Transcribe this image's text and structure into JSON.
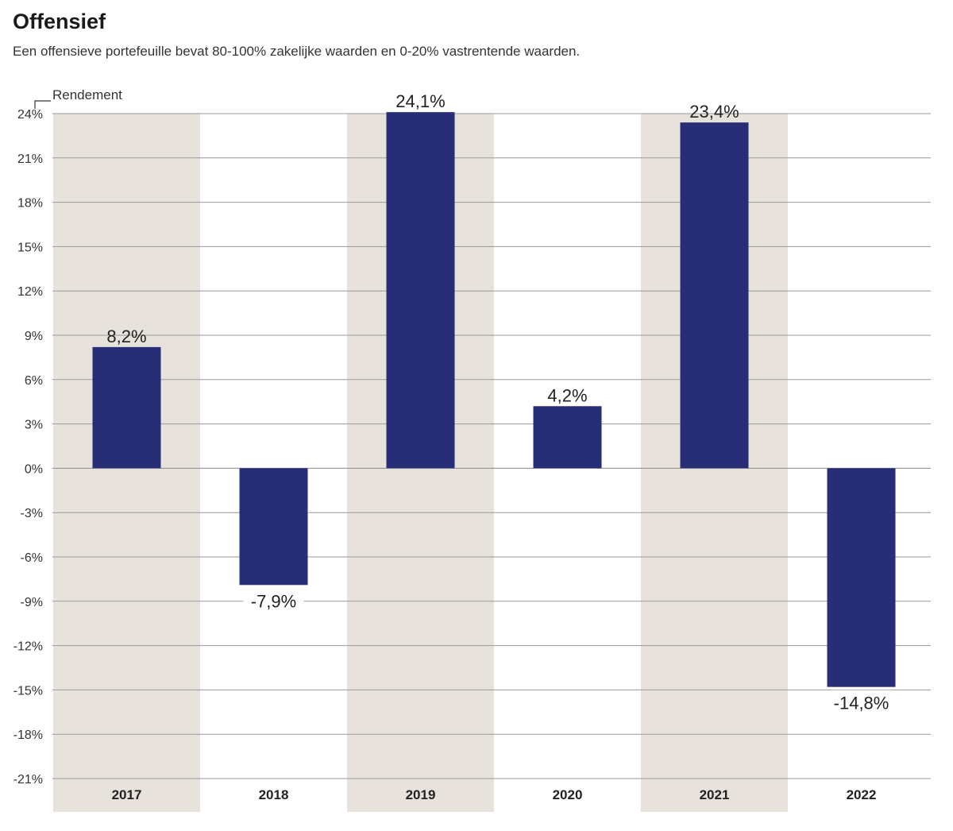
{
  "header": {
    "title": "Offensief",
    "subtitle": "Een offensieve portefeuille bevat 80-100% zakelijke waarden en 0-20% vastrentende waarden."
  },
  "colors": {
    "bar": "#282d78",
    "band": "#e7e2dc",
    "grid": "#9a9a9a",
    "zero": "#8a8a8a"
  },
  "chart_data": {
    "type": "bar",
    "title": "Offensief",
    "xlabel": "",
    "ylabel": "Rendement",
    "categories": [
      "2017",
      "2018",
      "2019",
      "2020",
      "2021",
      "2022"
    ],
    "values": [
      8.2,
      -7.9,
      24.1,
      4.2,
      23.4,
      -14.8
    ],
    "value_labels": [
      "8,2%",
      "-7,9%",
      "24,1%",
      "4,2%",
      "23,4%",
      "-14,8%"
    ],
    "ylim": [
      -21,
      24
    ],
    "yticks": [
      24,
      21,
      18,
      15,
      12,
      9,
      6,
      3,
      0,
      -3,
      -6,
      -9,
      -12,
      -15,
      -18,
      -21
    ],
    "ytick_labels": [
      "24%",
      "21%",
      "18%",
      "15%",
      "12%",
      "9%",
      "6%",
      "3%",
      "0%",
      "-3%",
      "-6%",
      "-9%",
      "-12%",
      "-15%",
      "-18%",
      "-21%"
    ],
    "shaded_categories": [
      "2017",
      "2019",
      "2021"
    ],
    "grid": true
  }
}
